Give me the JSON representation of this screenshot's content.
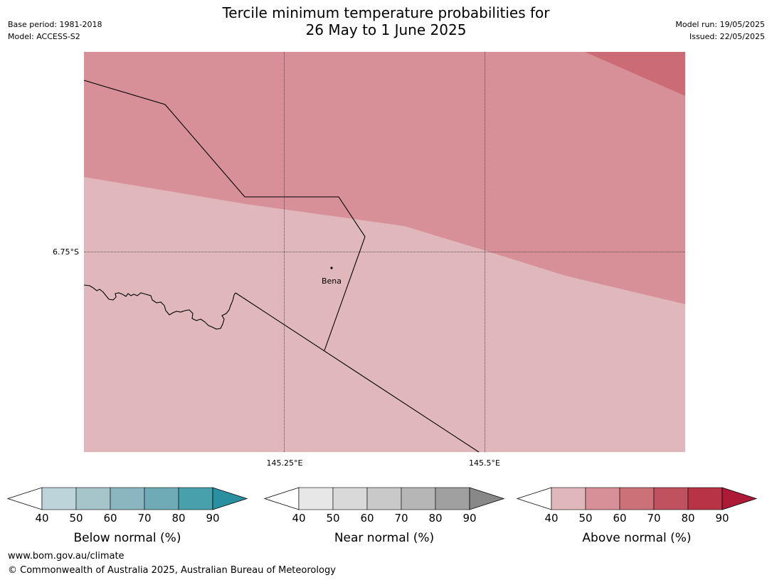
{
  "title": {
    "line1": "Tercile minimum temperature probabilities for",
    "line2": "26 May to 1 June 2025"
  },
  "meta_left": {
    "base_period": "Base period: 1981-2018",
    "model": "Model: ACCESS-S2"
  },
  "meta_right": {
    "model_run": "Model run: 19/05/2025",
    "issued": "Issued: 22/05/2025"
  },
  "map": {
    "lat_label": "6.75°S",
    "lon_labels": [
      "145.25°E",
      "145.5°E"
    ],
    "place_label": "Bena",
    "colors": {
      "above_50_60": "#d79097",
      "above_40_50": "#e0b8bc",
      "above_60_70": "#cb6b75"
    }
  },
  "colorbars": [
    {
      "id": "below",
      "title": "Below normal (%)",
      "ticks": [
        "40",
        "50",
        "60",
        "70",
        "80",
        "90"
      ],
      "colors": [
        "#bcd4da",
        "#a5c5ca",
        "#89b6bf",
        "#6fabb7",
        "#47a0ac",
        "#2a8f9e"
      ]
    },
    {
      "id": "near",
      "title": "Near normal (%)",
      "ticks": [
        "40",
        "50",
        "60",
        "70",
        "80",
        "90"
      ],
      "colors": [
        "#e7e7e7",
        "#d9d9d9",
        "#c9c9c9",
        "#b6b6b6",
        "#a0a0a0",
        "#888888"
      ]
    },
    {
      "id": "above",
      "title": "Above normal (%)",
      "ticks": [
        "40",
        "50",
        "60",
        "70",
        "80",
        "90"
      ],
      "colors": [
        "#e0b8bc",
        "#d79097",
        "#cb7177",
        "#c0525f",
        "#b83346",
        "#ad1a38"
      ]
    }
  ],
  "footer": {
    "url": "www.bom.gov.au/climate",
    "copyright": "© Commonwealth of Australia 2025, Australian Bureau of Meteorology"
  }
}
